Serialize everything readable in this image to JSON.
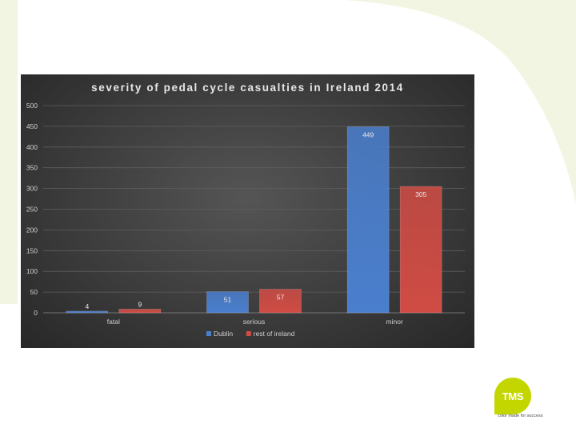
{
  "slide": {
    "logo_text": "TMS",
    "tagline": "color made for success"
  },
  "colors": {
    "dublin": "#4a7fce",
    "rest_of_ireland": "#d04c44",
    "accent": "#c4d600"
  },
  "chart_data": {
    "type": "bar",
    "title": "severity of pedal cycle casualties in Ireland 2014",
    "categories": [
      "fatal",
      "serious",
      "minor"
    ],
    "series": [
      {
        "name": "Dublin",
        "values": [
          4,
          51,
          449
        ]
      },
      {
        "name": "rest of ireland",
        "values": [
          9,
          57,
          305
        ]
      }
    ],
    "ylim": [
      0,
      500
    ],
    "yticks": [
      0,
      50,
      100,
      150,
      200,
      250,
      300,
      350,
      400,
      450,
      500
    ],
    "grid": true,
    "legend": "bottom",
    "xlabel": "",
    "ylabel": ""
  }
}
